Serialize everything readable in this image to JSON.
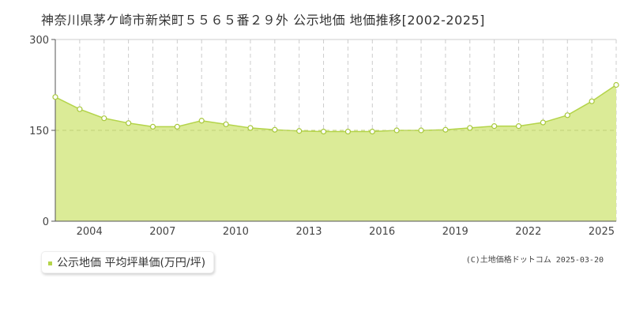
{
  "page": {
    "title": "神奈川県茅ケ崎市新栄町５５６５番２９外 公示地価 地価推移[2002-2025]",
    "credit": "(C)土地価格ドットコム 2025-03-20"
  },
  "colors": {
    "area_fill": "#dbeb97",
    "line": "#b4d44a",
    "marker_fill": "#ffffff",
    "marker_stroke": "#a8c83c",
    "grid": "#cccccc",
    "axis": "#555555",
    "legend_swatch": "#b4d44a"
  },
  "chart_data": {
    "type": "area",
    "title": "神奈川県茅ケ崎市新栄町５５６５番２９外 公示地価 地価推移[2002-2025]",
    "xlabel": "",
    "ylabel": "",
    "x": [
      2002,
      2003,
      2004,
      2005,
      2006,
      2007,
      2008,
      2009,
      2010,
      2011,
      2012,
      2013,
      2014,
      2015,
      2016,
      2017,
      2018,
      2019,
      2020,
      2021,
      2022,
      2023,
      2024,
      2025
    ],
    "series": [
      {
        "name": "公示地価 平均坪単価(万円/坪)",
        "values": [
          205,
          185,
          170,
          162,
          156,
          156,
          166,
          160,
          154,
          151,
          149,
          148,
          148,
          148,
          150,
          150,
          151,
          154,
          157,
          157,
          163,
          175,
          198,
          225
        ]
      }
    ],
    "ylim": [
      0,
      300
    ],
    "yticks": [
      "0",
      "150",
      "300"
    ],
    "xticks": [
      "2004",
      "2007",
      "2010",
      "2013",
      "2016",
      "2019",
      "2022",
      "2025"
    ],
    "xrange": [
      2002,
      2025
    ],
    "grid": true,
    "legend_position": "bottom-left"
  }
}
